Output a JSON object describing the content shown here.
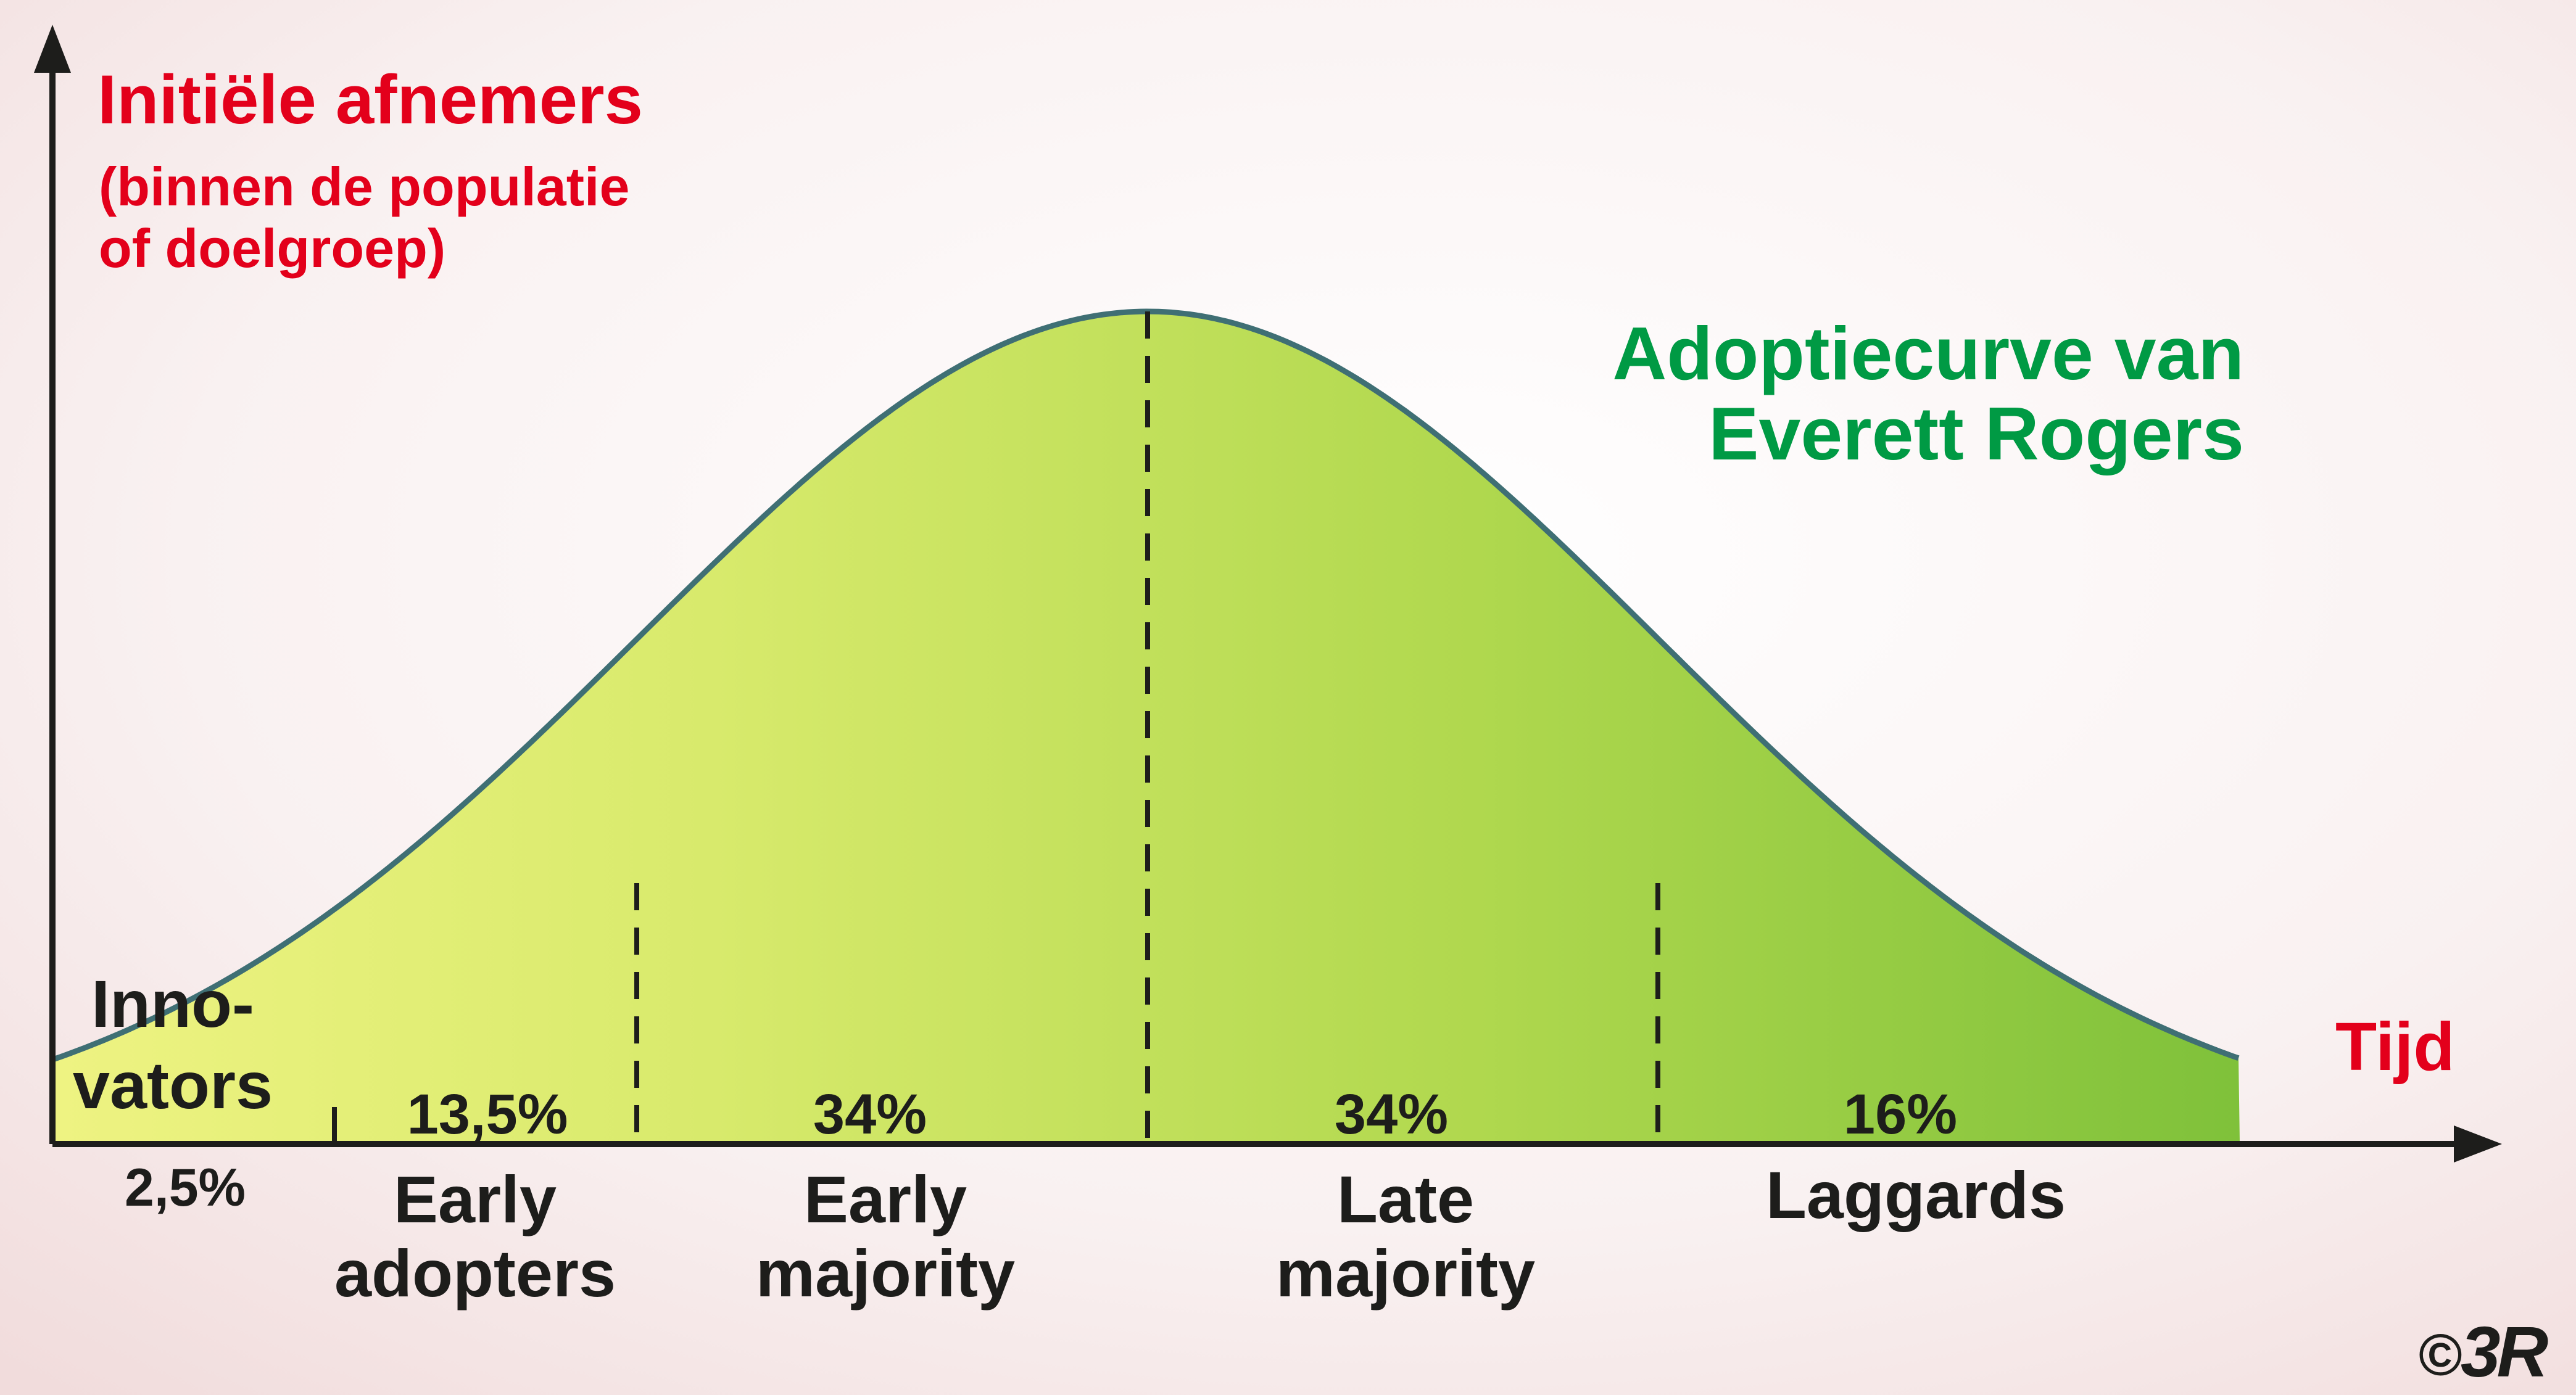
{
  "y_axis_title": "Initiële afnemers",
  "y_axis_subtitle_line1": "(binnen de populatie",
  "y_axis_subtitle_line2": "of doelgroep)",
  "x_axis_title": "Tijd",
  "curve_title_line1": "Adoptiecurve van",
  "curve_title_line2": "Everett Rogers",
  "copyright_symbol": "©",
  "logo_text": "3R",
  "segments": [
    {
      "name_line1": "Inno-",
      "name_line2": "vators",
      "percent": "2,5%"
    },
    {
      "name_line1": "Early",
      "name_line2": "adopters",
      "percent": "13,5%"
    },
    {
      "name_line1": "Early",
      "name_line2": "majority",
      "percent": "34%"
    },
    {
      "name_line1": "Late",
      "name_line2": "majority",
      "percent": "34%"
    },
    {
      "name_line1": "Laggards",
      "name_line2": "",
      "percent": "16%"
    }
  ],
  "colors": {
    "title_red": "#e3001b",
    "title_green": "#009a44",
    "curve_stroke": "#3f6f74",
    "fill_light": "#e6f07a",
    "fill_dark": "#8cc63f",
    "text_dark": "#1d1d1b"
  }
}
